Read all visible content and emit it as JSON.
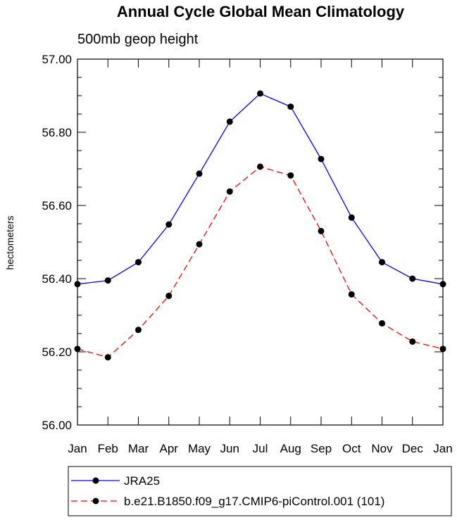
{
  "chart_data": {
    "type": "line",
    "title": "Annual Cycle Global Mean Climatology",
    "subtitle": "500mb geop height",
    "xlabel": "",
    "ylabel": "hectometers",
    "categories": [
      "Jan",
      "Feb",
      "Mar",
      "Apr",
      "May",
      "Jun",
      "Jul",
      "Aug",
      "Sep",
      "Oct",
      "Nov",
      "Dec",
      "Jan"
    ],
    "ylim": [
      56.0,
      57.0
    ],
    "yticks": [
      "56.00",
      "56.20",
      "56.40",
      "56.60",
      "56.80",
      "57.00"
    ],
    "ytick_values": [
      56.0,
      56.2,
      56.4,
      56.6,
      56.8,
      57.0
    ],
    "grid": false,
    "legend_position": "bottom",
    "series": [
      {
        "name": "JRA25",
        "color": "#0000ff",
        "dash": "solid",
        "values": [
          56.385,
          56.395,
          56.445,
          56.548,
          56.687,
          56.829,
          56.906,
          56.87,
          56.727,
          56.567,
          56.445,
          56.4,
          56.385
        ]
      },
      {
        "name": "b.e21.B1850.f09_g17.CMIP6-piControl.001 (101)",
        "color": "#ff0000",
        "dash": "dashed",
        "values": [
          56.208,
          56.185,
          56.26,
          56.353,
          56.494,
          56.638,
          56.706,
          56.682,
          56.53,
          56.357,
          56.278,
          56.228,
          56.208
        ]
      }
    ]
  }
}
